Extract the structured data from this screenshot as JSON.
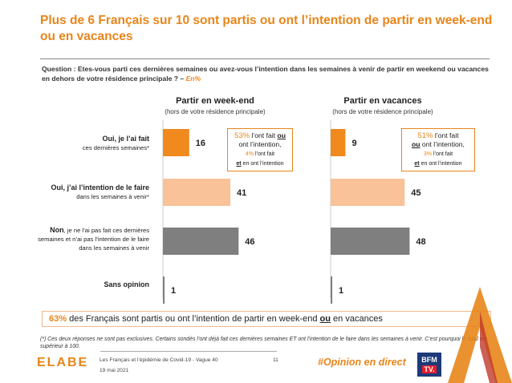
{
  "title": "Plus de 6 Français sur 10 sont partis ou ont l’intention de partir en week-end ou en vacances",
  "question": {
    "text": "Question : Etes-vous parti ces dernières semaines ou avez-vous l’intention dans les semaines à venir de partir en weekend ou vacances en dehors de votre résidence principale ? –",
    "unit": "En%"
  },
  "chart_data": {
    "type": "bar",
    "orientation": "horizontal",
    "categories": [
      "Oui, je l’ai fait ces dernières semaines*",
      "Oui, j’ai l’intention de le faire dans les semaines à venir*",
      "Non, je ne l’ai pas fait ces dernières semaines et n’ai pas l’intention de le faire dans les semaines à venir",
      "Sans opinion"
    ],
    "series": [
      {
        "name": "Partir en week-end",
        "values": [
          16,
          41,
          46,
          1
        ]
      },
      {
        "name": "Partir en vacances",
        "values": [
          9,
          45,
          48,
          1
        ]
      }
    ],
    "panel_subtitle": "(hors de votre résidence principale)",
    "colors": [
      "#f0891e",
      "#f9c299",
      "#7f7f7f",
      "#7f7f7f"
    ]
  },
  "row_labels": [
    {
      "bold": "Oui, je l’ai fait",
      "rest": "ces dernières semaines*"
    },
    {
      "bold": "Oui, j’ai l’intention de le faire",
      "rest": "dans les semaines à venir*"
    },
    {
      "bold": "Non",
      "rest": ", je ne l’ai pas fait ces dernières semaines et n’ai pas l’intention de le faire dans les semaines à venir"
    },
    {
      "bold": "Sans opinion",
      "rest": ""
    }
  ],
  "callouts": [
    {
      "pct": "53%",
      "line1_rest": " l’ont fait ",
      "ou": "ou",
      "line2": "ont l’intention,",
      "small_pct": "4%",
      "small_rest": " l’ont fait",
      "et": "et",
      "small_line2_rest": " en ont l’intention"
    },
    {
      "pct": "51%",
      "line1_rest": " l’ont fait",
      "ou": "ou",
      "line2": " ont l’intention,",
      "small_pct": "3%",
      "small_rest": " l’ont fait",
      "et": "et",
      "small_line2_rest": " en ont l’intention"
    }
  ],
  "summary": {
    "pct": "63%",
    "text1": " des Français sont partis ou ont l’intention de partir en week-end ",
    "ou": "ou",
    "text2": " en vacances"
  },
  "note": "(*) Ces deux réponses ne sont pas exclusives. Certains sondés l’ont déjà fait ces dernières semaines ET ont l’intention de le faire dans les semaines à venir. C’est pourquoi le total est supérieur à 100.",
  "footer": {
    "logo": "ELABE",
    "source": "Les Français et l’épidémie de Covid-19 - Vague 40",
    "date": "19 mai 2021",
    "page": "11",
    "hashtag": "#Opinion en direct",
    "bfm_line1": "BFM",
    "bfm_line2": "TV."
  }
}
